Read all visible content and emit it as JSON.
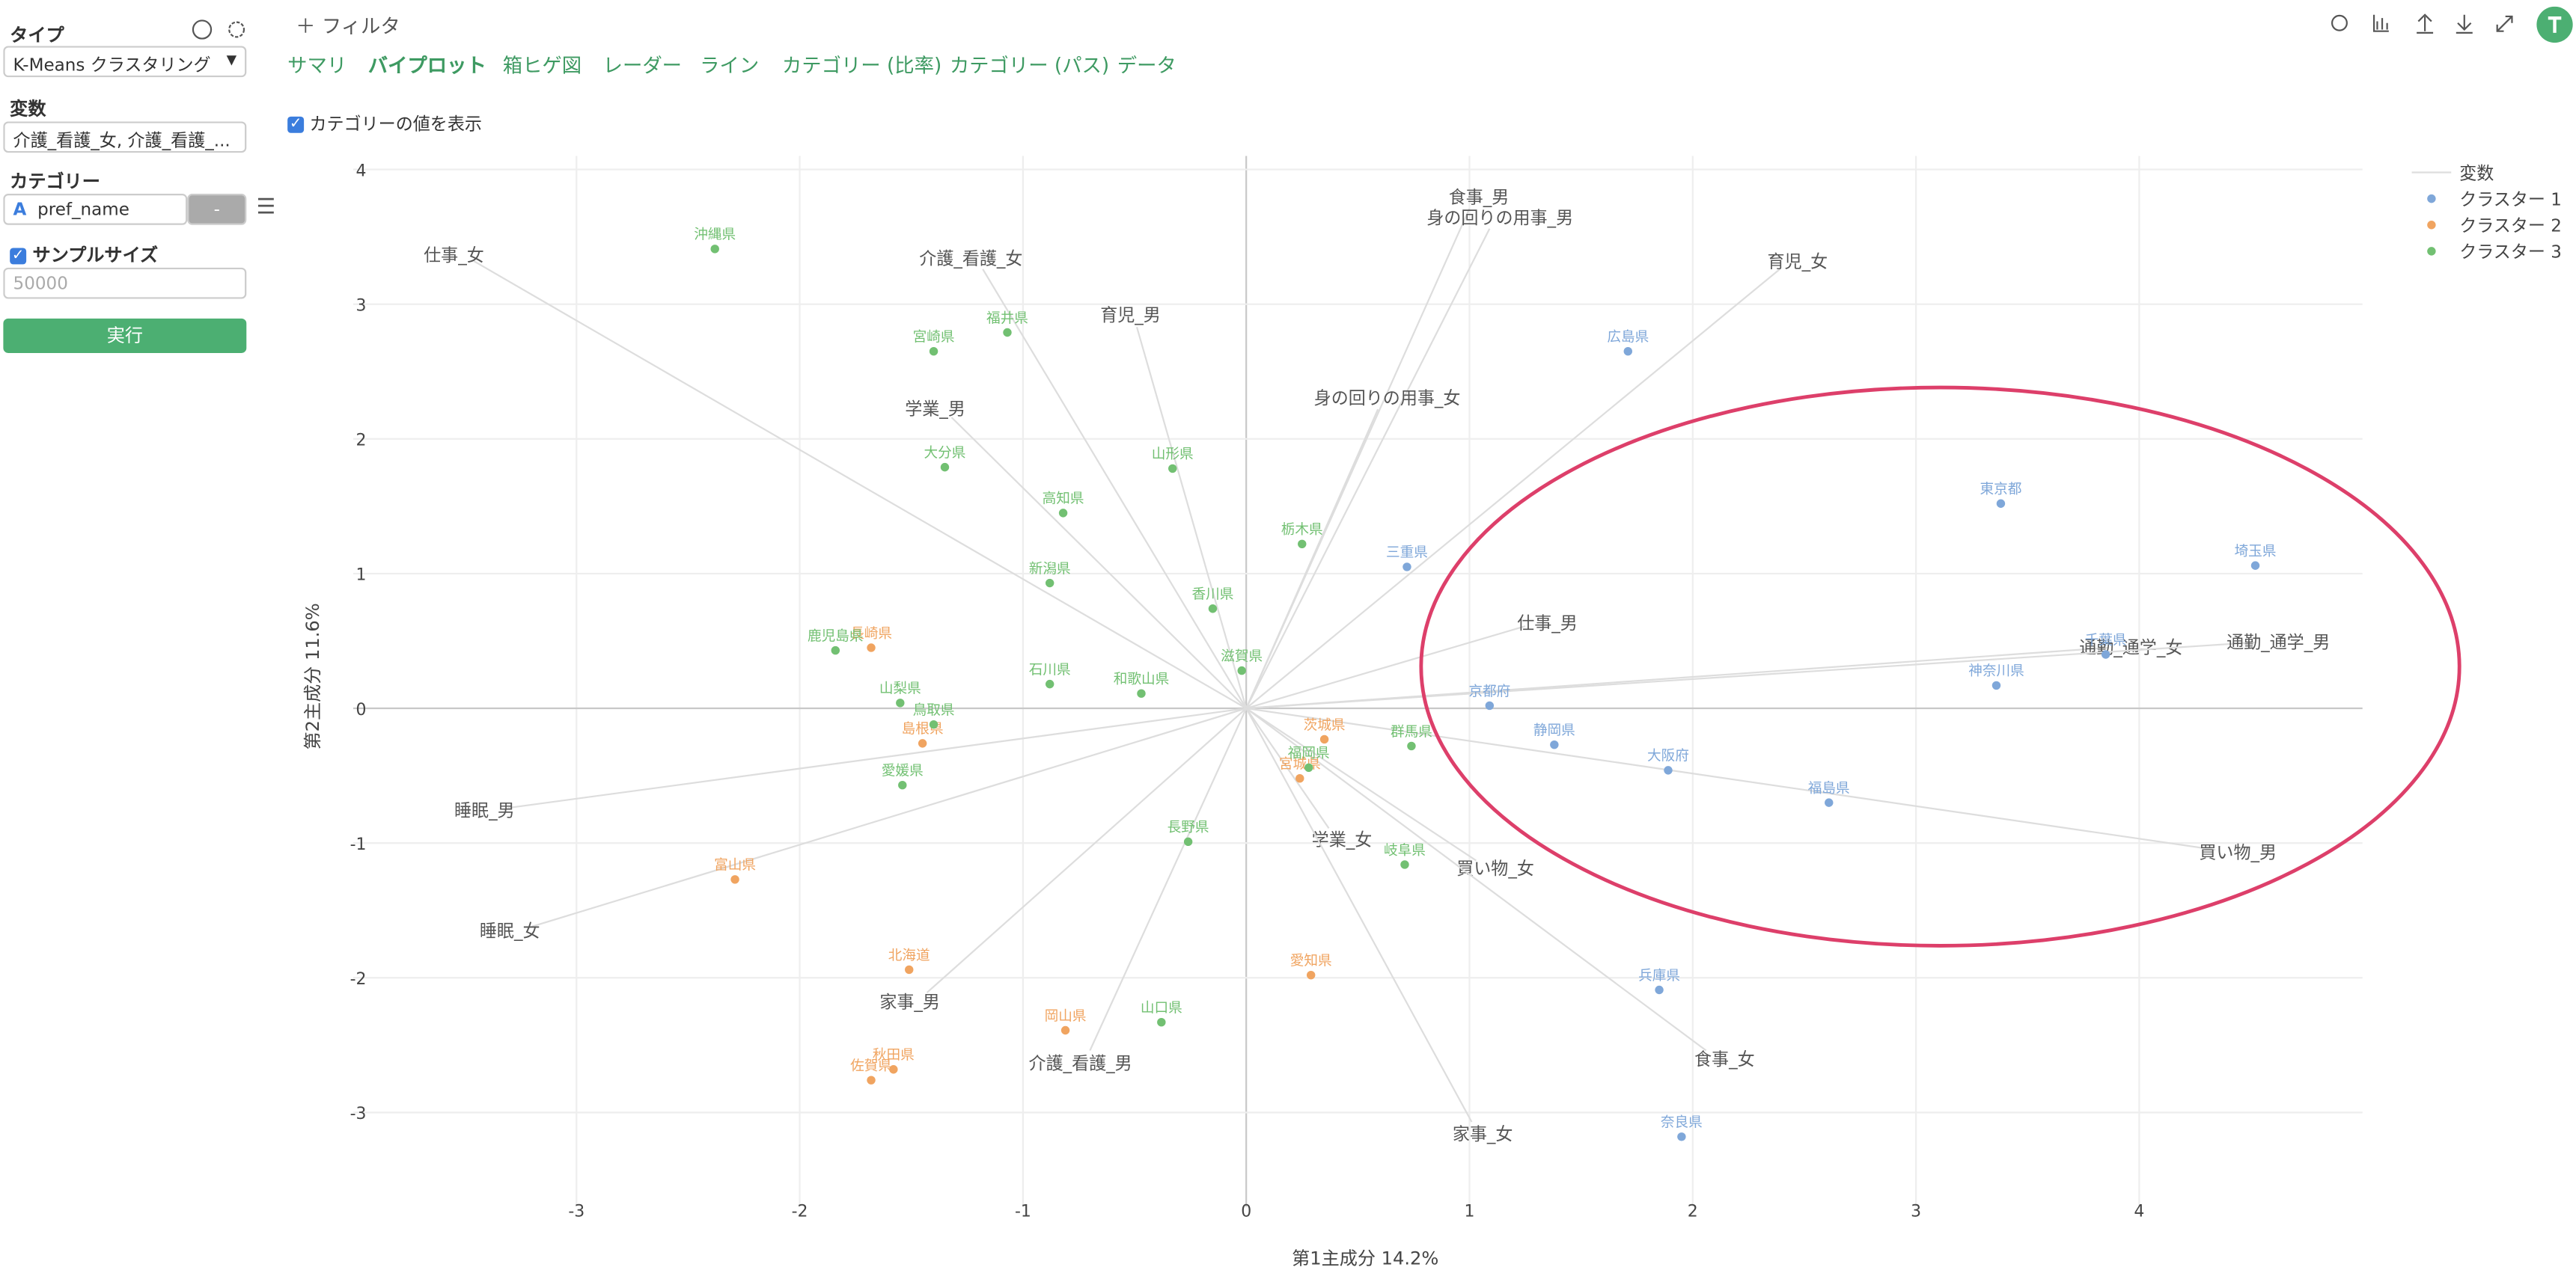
{
  "sidebar": {
    "type_label": "タイプ",
    "type_value": "K-Means クラスタリング",
    "variables_label": "変数",
    "variables_value": "介護_看護_女, 介護_看護_...",
    "category_label": "カテゴリー",
    "category_value": "pref_name",
    "category_button": "-",
    "sample_size_label": "サンプルサイズ",
    "sample_size_placeholder": "50000",
    "run_button": "実行"
  },
  "filter": "フィルタ",
  "tabs": [
    "サマリ",
    "バイプロット",
    "箱ヒゲ図",
    "レーダー",
    "ライン",
    "カテゴリー (比率)",
    "カテゴリー (パス)",
    "データ"
  ],
  "active_tab": 1,
  "show_category_values": "カテゴリーの値を表示",
  "chart_data": {
    "type": "scatter",
    "xlabel": "第1主成分 14.2%",
    "ylabel": "第2主成分 11.6%",
    "xlim": [
      -4,
      5
    ],
    "ylim": [
      -3.7,
      4.1
    ],
    "xticks": [
      -3,
      -2,
      -1,
      0,
      1,
      2,
      3,
      4
    ],
    "yticks": [
      -3,
      -2,
      -1,
      0,
      1,
      2,
      3,
      4
    ],
    "grid": true,
    "legend_title": "変数",
    "series": [
      {
        "name": "クラスター 1",
        "color": "#7fa7d9",
        "labels": [
          "広島県",
          "東京都",
          "埼玉県",
          "三重県",
          "京都府",
          "神奈川県",
          "千葉県",
          "静岡県",
          "大阪府",
          "福島県",
          "兵庫県",
          "奈良県"
        ],
        "x": [
          1.71,
          3.38,
          4.52,
          0.72,
          1.09,
          3.36,
          3.85,
          1.38,
          1.89,
          2.61,
          1.85,
          1.95
        ],
        "y": [
          2.65,
          1.52,
          1.06,
          1.05,
          0.02,
          0.17,
          0.4,
          -0.27,
          -0.46,
          -0.7,
          -2.09,
          -3.18
        ]
      },
      {
        "name": "クラスター 2",
        "color": "#f0a460",
        "labels": [
          "長崎県",
          "島根県",
          "茨城県",
          "宮城県",
          "富山県",
          "北海道",
          "愛知県",
          "岡山県",
          "秋田県",
          "佐賀県"
        ],
        "x": [
          -1.68,
          -1.45,
          0.35,
          0.24,
          -2.29,
          -1.51,
          0.29,
          -0.81,
          -1.58,
          -1.68
        ],
        "y": [
          0.45,
          -0.26,
          -0.23,
          -0.52,
          -1.27,
          -1.94,
          -1.98,
          -2.39,
          -2.68,
          -2.76
        ]
      },
      {
        "name": "クラスター 3",
        "color": "#72c072",
        "labels": [
          "沖縄県",
          "福井県",
          "宮崎県",
          "大分県",
          "山形県",
          "高知県",
          "栃木県",
          "新潟県",
          "香川県",
          "鹿児島県",
          "滋賀県",
          "石川県",
          "和歌山県",
          "山梨県",
          "鳥取県",
          "群馬県",
          "福岡県",
          "愛媛県",
          "長野県",
          "岐阜県",
          "山口県"
        ],
        "x": [
          -2.38,
          -1.07,
          -1.4,
          -1.35,
          -0.33,
          -0.82,
          0.25,
          -0.88,
          -0.15,
          -1.84,
          -0.02,
          -0.88,
          -0.47,
          -1.55,
          -1.4,
          0.74,
          0.28,
          -1.54,
          -0.26,
          0.71,
          -0.38
        ],
        "y": [
          3.41,
          2.79,
          2.65,
          1.79,
          1.78,
          1.45,
          1.22,
          0.93,
          0.74,
          0.43,
          0.28,
          0.18,
          0.11,
          0.04,
          -0.12,
          -0.28,
          -0.44,
          -0.57,
          -0.99,
          -1.16,
          -2.33
        ]
      }
    ],
    "loadings": {
      "color": "#dddddd",
      "names": [
        "仕事_女",
        "介護_看護_女",
        "育児_男",
        "学業_男",
        "食事_男",
        "身の回りの用事_男",
        "育児_女",
        "身の回りの用事_女",
        "仕事_男",
        "通勤_通学_女",
        "通勤_通学_男",
        "買い物_男",
        "買い物_女",
        "学業_女",
        "食事_女",
        "家事_女",
        "介護_看護_男",
        "家事_男",
        "睡眠_男",
        "睡眠_女"
      ],
      "x": [
        -3.46,
        -1.18,
        -0.49,
        -1.32,
        1.0,
        1.09,
        2.39,
        0.59,
        1.25,
        3.86,
        4.52,
        4.34,
        1.03,
        0.37,
        2.06,
        1.01,
        -0.7,
        -1.43,
        -3.31,
        -3.2
      ],
      "y": [
        3.32,
        3.26,
        2.83,
        2.16,
        3.71,
        3.56,
        3.26,
        2.22,
        0.61,
        0.45,
        0.49,
        -1.05,
        -1.13,
        -0.89,
        -2.54,
        -3.07,
        -2.54,
        -2.11,
        -0.74,
        -1.62
      ]
    }
  }
}
